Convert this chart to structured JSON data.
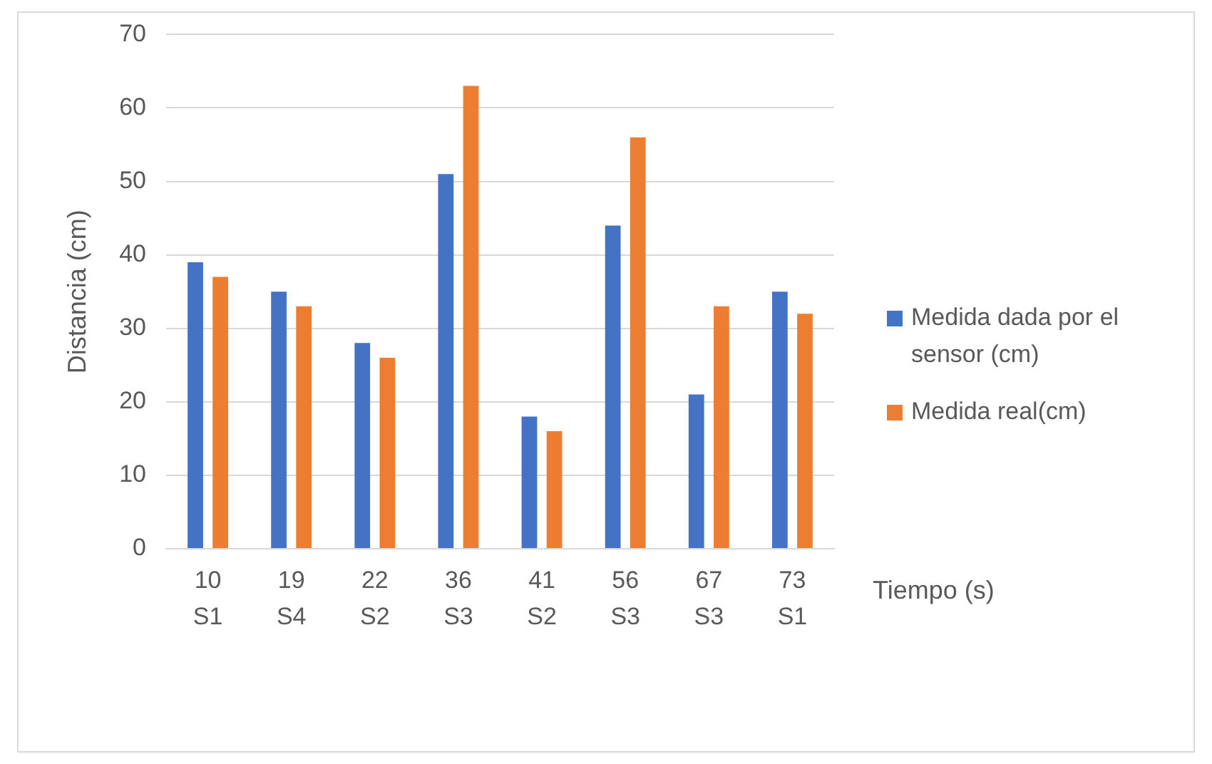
{
  "chart_data": {
    "type": "bar",
    "ylabel": "Distancia (cm)",
    "xlabel": "Tiempo (s)",
    "categories": [
      "10\nS1",
      "19\nS4",
      "22\nS2",
      "36\nS3",
      "41\nS2",
      "56\nS3",
      "67\nS3",
      "73\nS1"
    ],
    "series": [
      {
        "name": "Medida dada por el sensor (cm)",
        "color": "#4472c4",
        "values": [
          39,
          35,
          28,
          51,
          18,
          44,
          21,
          35
        ]
      },
      {
        "name": "Medida real(cm)",
        "color": "#ed7d31",
        "values": [
          37,
          33,
          26,
          63,
          16,
          56,
          33,
          32
        ]
      }
    ],
    "ylim": [
      0,
      70
    ],
    "yticks": [
      0,
      10,
      20,
      30,
      40,
      50,
      60,
      70
    ],
    "grid": "y",
    "legend": "right"
  }
}
